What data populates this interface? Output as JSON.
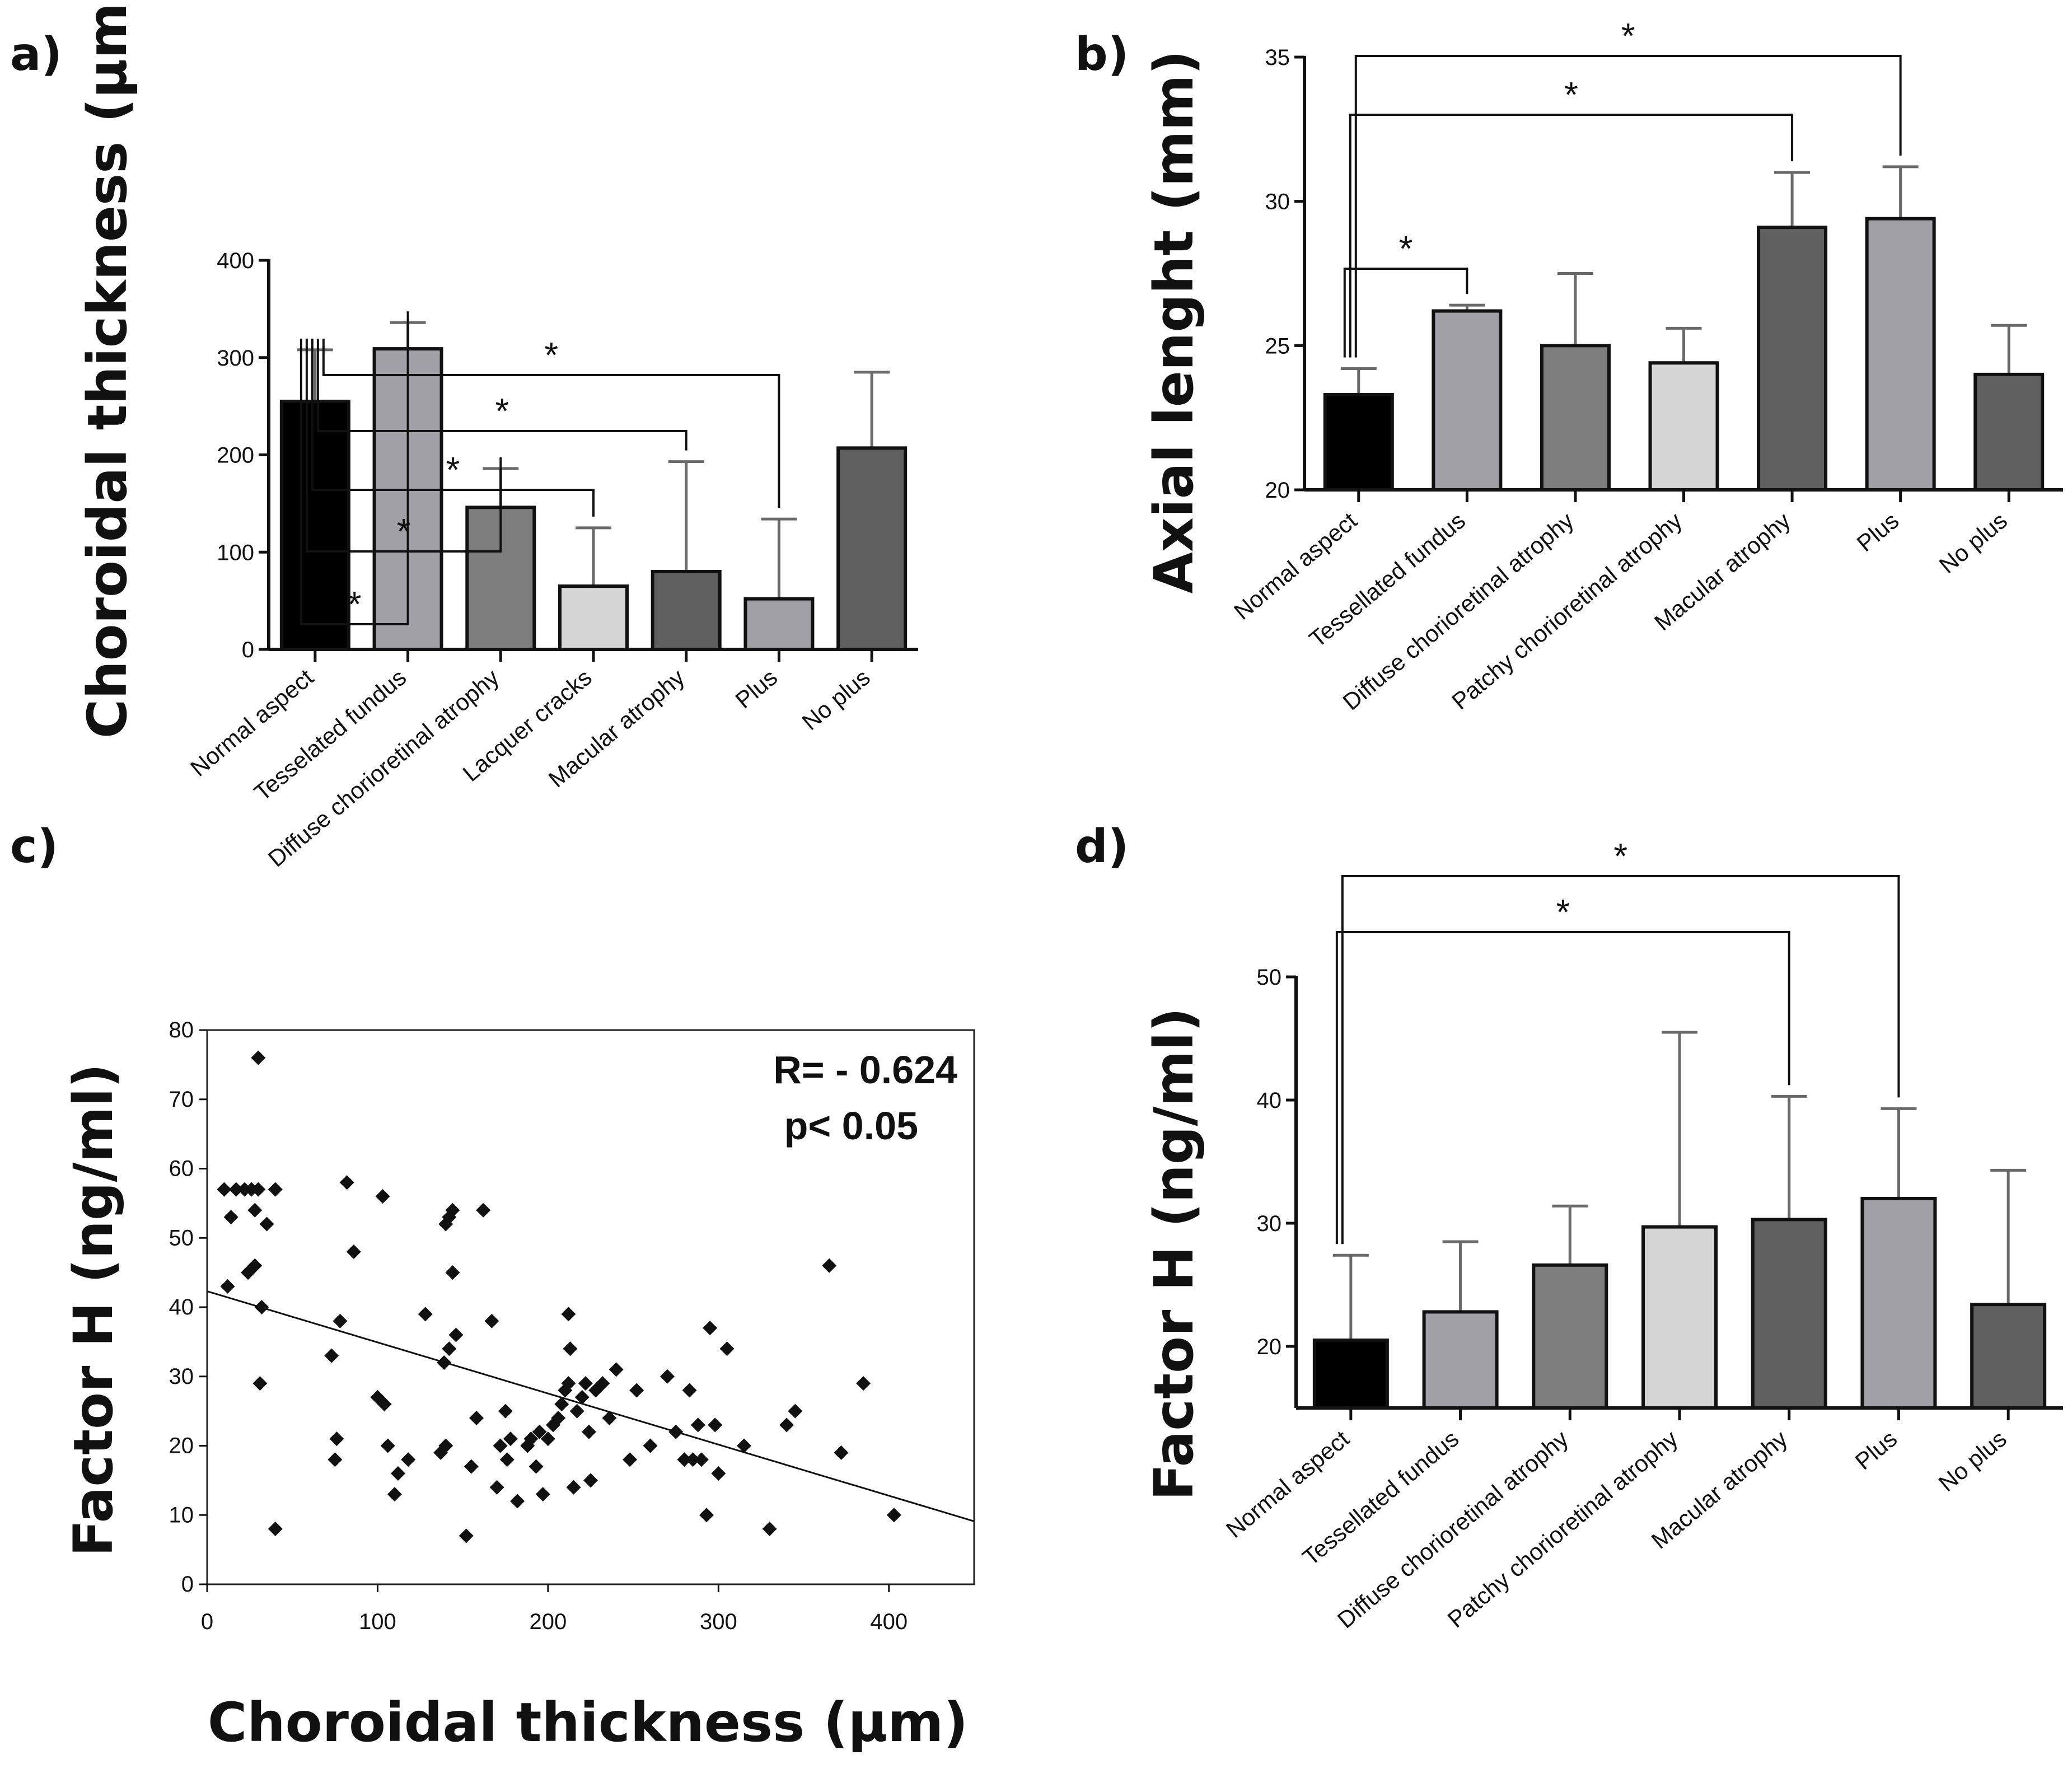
{
  "chart_data": [
    {
      "panel": "a)",
      "type": "bar",
      "ylabel": "Choroidal thickness (µm)",
      "ylim": [
        0,
        400
      ],
      "yticks": [
        0,
        100,
        200,
        300,
        400
      ],
      "categories": [
        "Normal aspect",
        "Tesselated fundus",
        "Diffuse chorioretinal atrophy",
        "Lacquer cracks",
        "Macular atrophy",
        "Plus",
        "No plus"
      ],
      "values": [
        255,
        309,
        146,
        65,
        80,
        52,
        207
      ],
      "errors": [
        53,
        27,
        40,
        60,
        113,
        82,
        78
      ],
      "colors": [
        "#000000",
        "#a0a0a6",
        "#7e7e7e",
        "#d5d5d5",
        "#5f5f5f",
        "#a0a0a6",
        "#5f5f5f"
      ],
      "brackets": [
        {
          "from": 0,
          "to": 1,
          "label": "*"
        },
        {
          "from": 0,
          "to": 2,
          "label": "*"
        },
        {
          "from": 0,
          "to": 3,
          "label": "*"
        },
        {
          "from": 0,
          "to": 4,
          "label": "*"
        },
        {
          "from": 0,
          "to": 5,
          "label": "*"
        }
      ]
    },
    {
      "panel": "b)",
      "type": "bar",
      "ylabel": "Axial lenght (mm)",
      "ylim": [
        20,
        35
      ],
      "yticks": [
        20,
        25,
        30,
        35
      ],
      "categories": [
        "Normal aspect",
        "Tessellated fundus",
        "Diffuse chorioretinal atrophy",
        "Patchy chorioretinal atrophy",
        "Macular atrophy",
        "Plus",
        "No plus"
      ],
      "values": [
        23.3,
        26.2,
        25.0,
        24.4,
        29.1,
        29.4,
        24.0
      ],
      "errors": [
        0.9,
        0.2,
        2.5,
        1.2,
        1.9,
        1.8,
        1.7
      ],
      "colors": [
        "#000000",
        "#a0a0a6",
        "#7e7e7e",
        "#d5d5d5",
        "#5f5f5f",
        "#a0a0a6",
        "#5f5f5f"
      ],
      "brackets": [
        {
          "from": 0,
          "to": 1,
          "label": "*"
        },
        {
          "from": 0,
          "to": 4,
          "label": "*"
        },
        {
          "from": 0,
          "to": 5,
          "label": "*"
        }
      ]
    },
    {
      "panel": "c)",
      "type": "scatter",
      "xlabel": "Choroidal thickness (µm)",
      "ylabel": "Factor H  (ng/ml)",
      "xlim": [
        0,
        450
      ],
      "ylim": [
        0,
        80
      ],
      "xticks": [
        0,
        100,
        200,
        300,
        400
      ],
      "yticks": [
        0,
        10,
        20,
        30,
        40,
        50,
        60,
        70,
        80
      ],
      "annotation": [
        "R= - 0.624",
        "p< 0.05"
      ],
      "trendline": {
        "x": [
          0,
          450
        ],
        "y": [
          42.3,
          9.1
        ]
      },
      "points": [
        [
          10,
          57
        ],
        [
          14,
          53
        ],
        [
          17,
          57
        ],
        [
          22,
          57
        ],
        [
          26,
          57
        ],
        [
          28,
          54
        ],
        [
          30,
          57
        ],
        [
          35,
          52
        ],
        [
          40,
          57
        ],
        [
          24,
          45
        ],
        [
          28,
          46
        ],
        [
          12,
          43
        ],
        [
          30,
          76
        ],
        [
          32,
          40
        ],
        [
          31,
          29
        ],
        [
          40,
          8
        ],
        [
          73,
          33
        ],
        [
          76,
          21
        ],
        [
          75,
          18
        ],
        [
          78,
          38
        ],
        [
          82,
          58
        ],
        [
          86,
          48
        ],
        [
          100,
          27
        ],
        [
          103,
          56
        ],
        [
          104,
          26
        ],
        [
          106,
          20
        ],
        [
          110,
          13
        ],
        [
          112,
          16
        ],
        [
          118,
          18
        ],
        [
          128,
          39
        ],
        [
          137,
          19
        ],
        [
          140,
          20
        ],
        [
          140,
          52
        ],
        [
          142,
          53
        ],
        [
          144,
          54
        ],
        [
          144,
          45
        ],
        [
          146,
          36
        ],
        [
          142,
          34
        ],
        [
          139,
          32
        ],
        [
          152,
          7
        ],
        [
          155,
          17
        ],
        [
          158,
          24
        ],
        [
          162,
          54
        ],
        [
          167,
          38
        ],
        [
          170,
          14
        ],
        [
          172,
          20
        ],
        [
          175,
          25
        ],
        [
          176,
          18
        ],
        [
          178,
          21
        ],
        [
          182,
          12
        ],
        [
          188,
          20
        ],
        [
          190,
          21
        ],
        [
          193,
          17
        ],
        [
          195,
          22
        ],
        [
          197,
          13
        ],
        [
          200,
          21
        ],
        [
          203,
          23
        ],
        [
          206,
          24
        ],
        [
          208,
          26
        ],
        [
          210,
          28
        ],
        [
          212,
          29
        ],
        [
          213,
          34
        ],
        [
          212,
          39
        ],
        [
          215,
          14
        ],
        [
          217,
          25
        ],
        [
          220,
          27
        ],
        [
          222,
          29
        ],
        [
          224,
          22
        ],
        [
          225,
          15
        ],
        [
          228,
          28
        ],
        [
          232,
          29
        ],
        [
          236,
          24
        ],
        [
          240,
          31
        ],
        [
          248,
          18
        ],
        [
          252,
          28
        ],
        [
          260,
          20
        ],
        [
          270,
          30
        ],
        [
          275,
          22
        ],
        [
          280,
          18
        ],
        [
          283,
          28
        ],
        [
          285,
          18
        ],
        [
          288,
          23
        ],
        [
          290,
          18
        ],
        [
          293,
          10
        ],
        [
          295,
          37
        ],
        [
          298,
          23
        ],
        [
          300,
          16
        ],
        [
          305,
          34
        ],
        [
          315,
          20
        ],
        [
          330,
          8
        ],
        [
          340,
          23
        ],
        [
          345,
          25
        ],
        [
          365,
          46
        ],
        [
          372,
          19
        ],
        [
          385,
          29
        ],
        [
          403,
          10
        ]
      ]
    },
    {
      "panel": "d)",
      "type": "bar",
      "ylabel": "Factor H (ng/ml)",
      "ylim": [
        15,
        50
      ],
      "yticks": [
        20,
        30,
        40,
        50
      ],
      "categories": [
        "Normal aspect",
        "Tessellated fundus",
        "Diffuse chorioretinal atrophy",
        "Patchy chorioretinal atrophy",
        "Macular atrophy",
        "Plus",
        "No plus"
      ],
      "values": [
        20.5,
        22.8,
        26.6,
        29.7,
        30.3,
        32.0,
        23.4
      ],
      "errors": [
        6.9,
        5.7,
        4.8,
        15.8,
        10.0,
        7.3,
        10.9
      ],
      "colors": [
        "#000000",
        "#a0a0a6",
        "#7e7e7e",
        "#d5d5d5",
        "#5f5f5f",
        "#a0a0a6",
        "#5f5f5f"
      ],
      "brackets": [
        {
          "from": 0,
          "to": 4,
          "label": "*"
        },
        {
          "from": 0,
          "to": 5,
          "label": "*"
        }
      ]
    }
  ]
}
